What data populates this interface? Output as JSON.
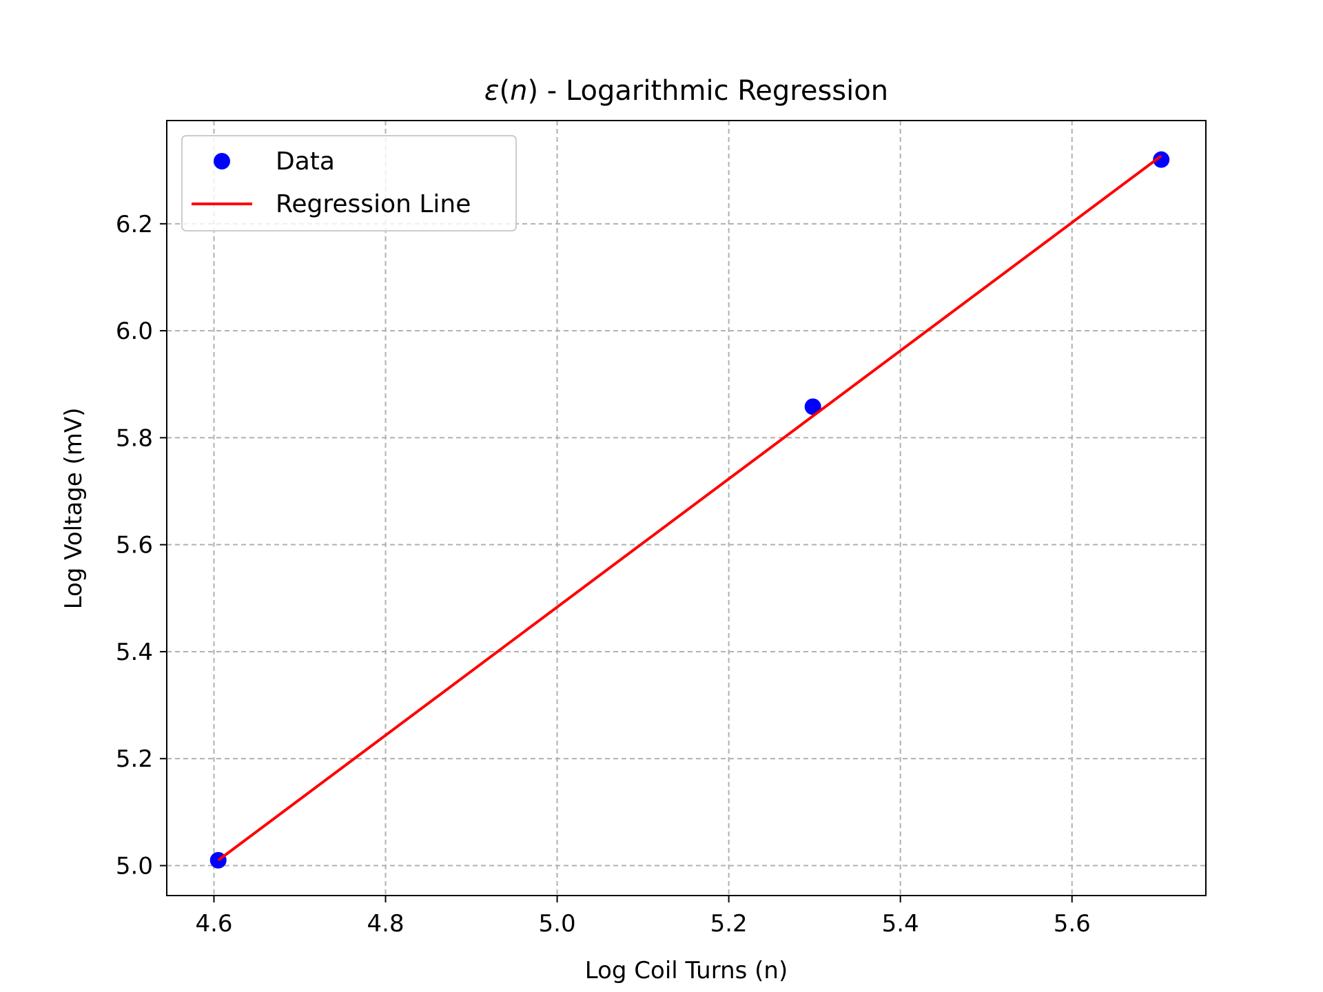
{
  "chart_data": {
    "type": "scatter",
    "title_symbol": "ε",
    "title_var": "n",
    "title_rest": " - Logarithmic Regression",
    "xlabel": "Log Coil Turns (n)",
    "ylabel": "Log Voltage (mV)",
    "xlim": [
      4.545,
      5.756
    ],
    "ylim": [
      4.944,
      6.393
    ],
    "xticks": [
      "4.6",
      "4.8",
      "5.0",
      "5.2",
      "5.4",
      "5.6"
    ],
    "yticks": [
      "5.0",
      "5.2",
      "5.4",
      "5.6",
      "5.8",
      "6.0",
      "6.2"
    ],
    "grid": true,
    "legend_position": "upper left",
    "series": [
      {
        "name": "Data",
        "kind": "scatter",
        "color": "#0000ff",
        "x": [
          4.605,
          5.298,
          5.704
        ],
        "y": [
          5.01,
          5.858,
          6.32
        ]
      },
      {
        "name": "Regression Line",
        "kind": "line",
        "color": "#ff0000",
        "x": [
          4.605,
          5.704
        ],
        "y": [
          5.01,
          6.327
        ]
      }
    ]
  }
}
